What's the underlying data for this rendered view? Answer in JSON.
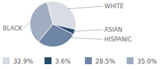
{
  "chart_data": {
    "type": "pie",
    "categories": [
      "WHITE",
      "ASIAN",
      "HISPANIC",
      "BLACK"
    ],
    "values": [
      32.9,
      3.6,
      28.5,
      35.0
    ],
    "value_labels": [
      "32.9%",
      "3.6%",
      "28.5%",
      "35.0%"
    ],
    "colors": [
      "#d8dde5",
      "#2a4a6c",
      "#6e85a5",
      "#a0adc0"
    ],
    "legend": "bottom"
  }
}
